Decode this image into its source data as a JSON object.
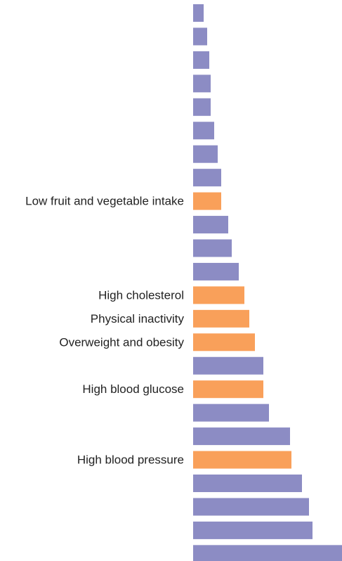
{
  "chart_data": {
    "type": "barh",
    "categories": [
      null,
      null,
      null,
      null,
      null,
      null,
      null,
      null,
      "Low fruit and vegetable intake",
      null,
      null,
      null,
      "High cholesterol",
      "Physical inactivity",
      "Overweight and obesity",
      null,
      "High blood glucose",
      null,
      null,
      "High blood pressure",
      null,
      null,
      null,
      null
    ],
    "values": [
      15,
      20,
      23,
      25,
      25,
      30,
      35,
      40,
      40,
      50,
      55,
      65,
      73,
      80,
      88,
      100,
      100,
      108,
      138,
      140,
      155,
      165,
      170,
      212
    ],
    "colors": [
      "#8c8cc4",
      "#8c8cc4",
      "#8c8cc4",
      "#8c8cc4",
      "#8c8cc4",
      "#8c8cc4",
      "#8c8cc4",
      "#8c8cc4",
      "#f9a05a",
      "#8c8cc4",
      "#8c8cc4",
      "#8c8cc4",
      "#f9a05a",
      "#f9a05a",
      "#f9a05a",
      "#8c8cc4",
      "#f9a05a",
      "#8c8cc4",
      "#8c8cc4",
      "#f9a05a",
      "#8c8cc4",
      "#8c8cc4",
      "#8c8cc4",
      "#8c8cc4"
    ]
  }
}
